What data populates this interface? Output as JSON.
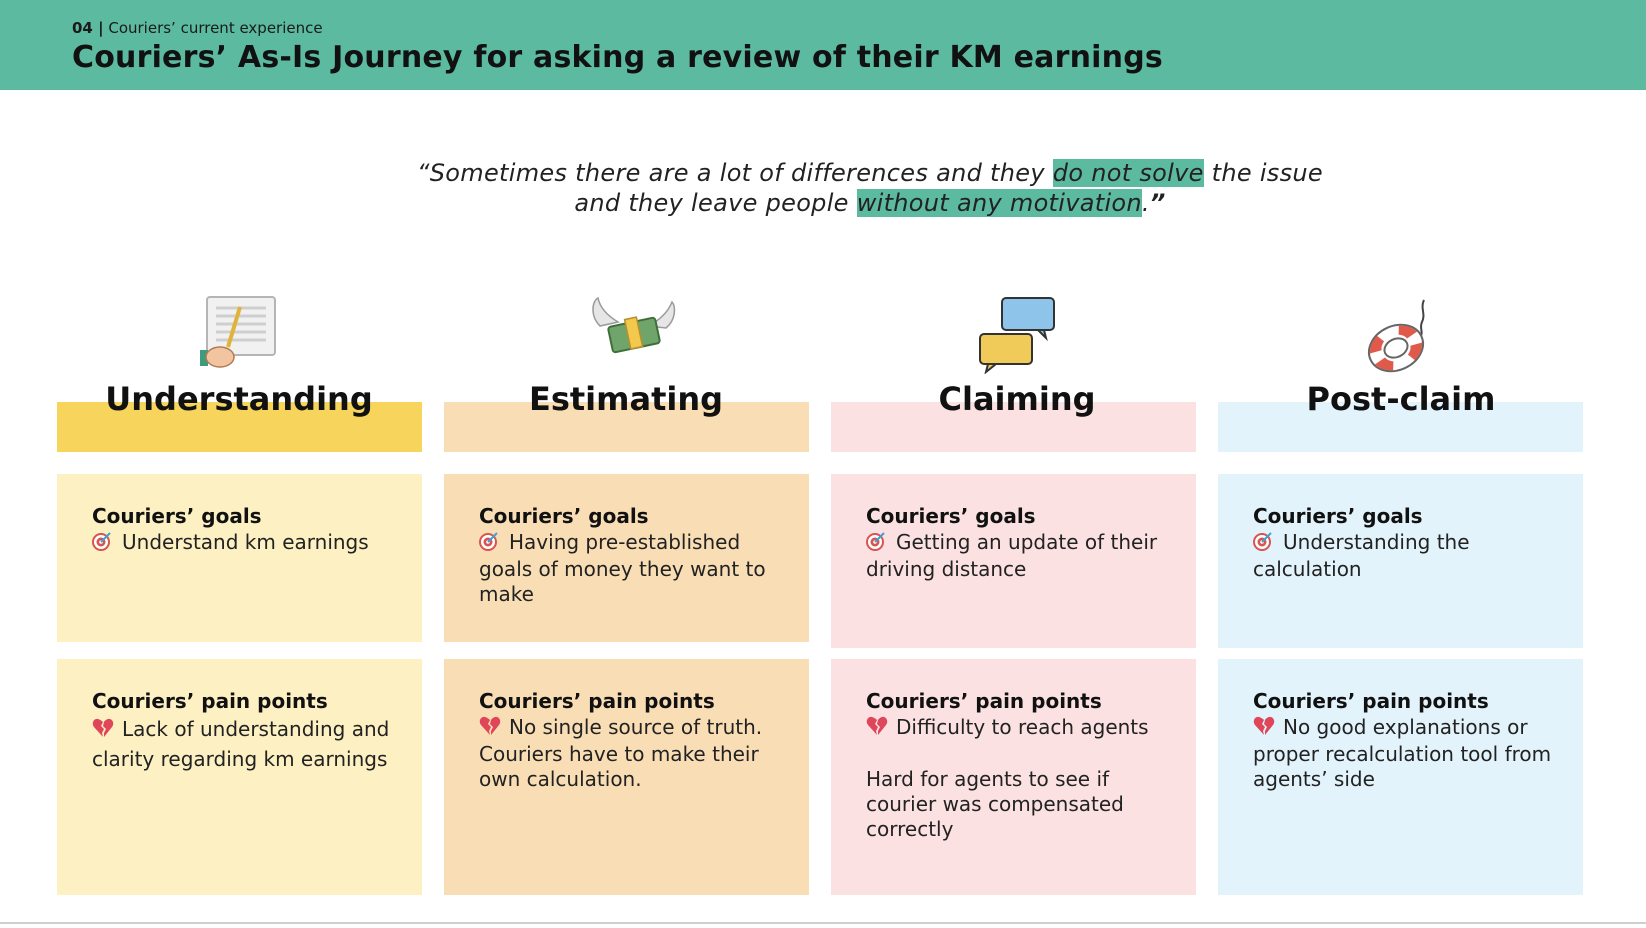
{
  "header": {
    "section_number": "04 |",
    "section_name": " Couriers’ current experience",
    "title": "Couriers’ As-Is Journey for asking a review of their KM earnings"
  },
  "quote": {
    "line1_a": "“Sometimes there are a lot of differences and they ",
    "line1_hl": "do not solve",
    "line1_b": " the issue",
    "line2_a": "and they leave people ",
    "line2_hl": "without any motivation",
    "line2_b": ".",
    "line2_close": "”"
  },
  "colors": {
    "header": "#5bbaa0",
    "understanding_band": "#f7d45b",
    "understanding_card": "#fdf0c3",
    "estimating_band": "#f9deb5",
    "estimating_card": "#f9deb5",
    "claiming_band": "#fbe1e1",
    "claiming_card": "#fbe1e1",
    "postclaim_band": "#e2f3fc",
    "postclaim_card": "#e2f3fc"
  },
  "stages": [
    {
      "title": "Understanding",
      "icon": "document-pen-icon",
      "goals_heading": "Couriers’ goals",
      "goals_icon": "target-icon",
      "goals_text": "Understand km earnings",
      "pain_heading": "Couriers’ pain points",
      "pain_icon": "broken-heart-icon",
      "pain_text": "Lack of understanding and clarity regarding km earnings",
      "pain_text2": ""
    },
    {
      "title": "Estimating",
      "icon": "money-with-wings-icon",
      "goals_heading": "Couriers’ goals",
      "goals_icon": "target-icon",
      "goals_text": "Having pre-established goals of money they want to make",
      "pain_heading": "Couriers’ pain points",
      "pain_icon": "broken-heart-icon",
      "pain_text": "No single source of truth. Couriers have to make their own calculation.",
      "pain_text2": ""
    },
    {
      "title": "Claiming",
      "icon": "speech-bubbles-icon",
      "goals_heading": "Couriers’ goals",
      "goals_icon": "target-icon",
      "goals_text": "Getting an update of their driving distance",
      "pain_heading": "Couriers’ pain points",
      "pain_icon": "broken-heart-icon",
      "pain_text": "Difficulty to reach agents",
      "pain_text2": "Hard for agents to see if courier was compensated correctly"
    },
    {
      "title": "Post-claim",
      "icon": "lifebuoy-icon",
      "goals_heading": "Couriers’ goals",
      "goals_icon": "target-icon",
      "goals_text": "Understanding the calculation",
      "pain_heading": "Couriers’ pain points",
      "pain_icon": "broken-heart-icon",
      "pain_text": "No good explanations or proper recalculation tool from agents’ side",
      "pain_text2": ""
    }
  ]
}
